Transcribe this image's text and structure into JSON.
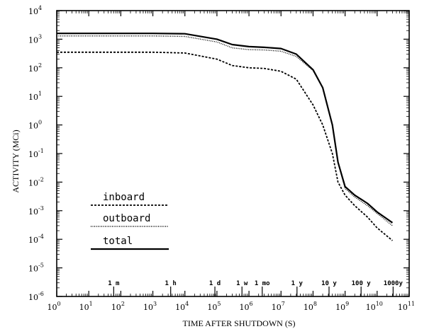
{
  "chart_data": {
    "type": "line",
    "title": "",
    "xlabel": "TIME AFTER SHUTDOWN (S)",
    "ylabel": "ACTIVITY (MCi)",
    "x_scale": "log",
    "y_scale": "log",
    "xlim": [
      1,
      100000000000.0
    ],
    "ylim": [
      1e-06,
      10000.0
    ],
    "x_ticks": [
      {
        "base": "10",
        "exp": "0"
      },
      {
        "base": "10",
        "exp": "1"
      },
      {
        "base": "10",
        "exp": "2"
      },
      {
        "base": "10",
        "exp": "3"
      },
      {
        "base": "10",
        "exp": "4"
      },
      {
        "base": "10",
        "exp": "5"
      },
      {
        "base": "10",
        "exp": "6"
      },
      {
        "base": "10",
        "exp": "7"
      },
      {
        "base": "10",
        "exp": "8"
      },
      {
        "base": "10",
        "exp": "9"
      },
      {
        "base": "10",
        "exp": "10"
      },
      {
        "base": "10",
        "exp": "11"
      }
    ],
    "y_ticks": [
      {
        "base": "10",
        "exp": "4"
      },
      {
        "base": "10",
        "exp": "3"
      },
      {
        "base": "10",
        "exp": "2"
      },
      {
        "base": "10",
        "exp": "1"
      },
      {
        "base": "10",
        "exp": "0"
      },
      {
        "base": "10",
        "exp": "-1"
      },
      {
        "base": "10",
        "exp": "-2"
      },
      {
        "base": "10",
        "exp": "-3"
      },
      {
        "base": "10",
        "exp": "-4"
      },
      {
        "base": "10",
        "exp": "-5"
      },
      {
        "base": "10",
        "exp": "-6"
      }
    ],
    "time_markers": [
      {
        "label": "1 m",
        "x": 60
      },
      {
        "label": "1 h",
        "x": 3600
      },
      {
        "label": "1 d",
        "x": 86400
      },
      {
        "label": "1 w",
        "x": 604800
      },
      {
        "label": "1 mo",
        "x": 2592000
      },
      {
        "label": "1 y",
        "x": 31536000
      },
      {
        "label": "10 y",
        "x": 315360000
      },
      {
        "label": "100 y",
        "x": 3153600000
      },
      {
        "label": "1000y",
        "x": 31536000000
      }
    ],
    "series": [
      {
        "name": "inboard",
        "style": "dashed",
        "x": [
          1,
          1000.0,
          10000.0,
          100000.0,
          300000.0,
          1000000.0,
          3000000.0,
          10000000.0,
          30000000.0,
          100000000.0,
          200000000.0,
          400000000.0,
          600000000.0,
          1000000000.0,
          2000000000.0,
          5000000000.0,
          10000000000.0,
          30000000000.0
        ],
        "y": [
          350,
          350,
          330,
          200,
          120,
          100,
          95,
          75,
          40,
          5,
          1,
          0.1,
          0.01,
          0.0035,
          0.0015,
          0.0006,
          0.00025,
          9e-05
        ]
      },
      {
        "name": "outboard",
        "style": "dotted",
        "x": [
          1,
          1000.0,
          10000.0,
          100000.0,
          300000.0,
          1000000.0,
          3000000.0,
          10000000.0,
          30000000.0,
          100000000.0,
          200000000.0,
          400000000.0,
          600000000.0,
          1000000000.0,
          2000000000.0,
          5000000000.0,
          10000000000.0,
          30000000000.0
        ],
        "y": [
          1300,
          1300,
          1250,
          800,
          500,
          430,
          420,
          380,
          250,
          80,
          20,
          1,
          0.05,
          0.006,
          0.003,
          0.0015,
          0.0008,
          0.0003
        ]
      },
      {
        "name": "total",
        "style": "solid",
        "x": [
          1,
          1000.0,
          10000.0,
          100000.0,
          300000.0,
          1000000.0,
          3000000.0,
          10000000.0,
          30000000.0,
          100000000.0,
          200000000.0,
          400000000.0,
          600000000.0,
          1000000000.0,
          2000000000.0,
          5000000000.0,
          10000000000.0,
          30000000000.0
        ],
        "y": [
          1600,
          1600,
          1550,
          1000,
          650,
          550,
          520,
          470,
          300,
          85,
          20,
          1,
          0.05,
          0.007,
          0.0035,
          0.0018,
          0.0009,
          0.00038
        ]
      }
    ],
    "grid": false,
    "legend_position": "left"
  }
}
